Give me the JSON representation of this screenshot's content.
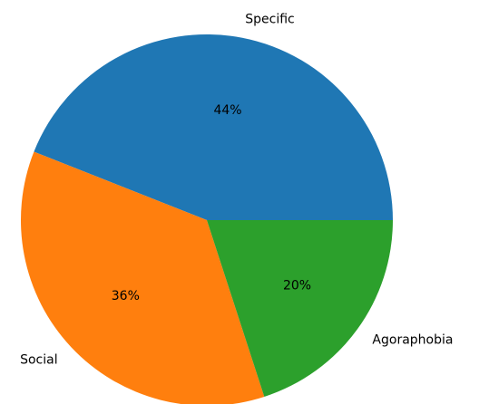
{
  "chart_data": {
    "type": "pie",
    "title": "",
    "categories": [
      "Specific",
      "Social",
      "Agoraphobia"
    ],
    "values": [
      44,
      36,
      20
    ],
    "labels": [
      "44%",
      "36%",
      "20%"
    ],
    "colors": [
      "#1f77b4",
      "#ff7f0e",
      "#2ca02c"
    ],
    "start_angle_deg": 0,
    "direction": "counterclockwise",
    "legend": "none"
  }
}
